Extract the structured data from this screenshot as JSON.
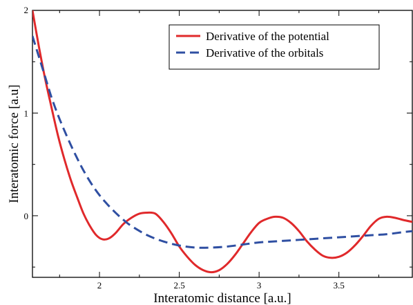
{
  "chart_data": {
    "type": "line",
    "xlabel": "Interatomic distance [a.u.]",
    "ylabel": "Interatomic force [a.u]",
    "xlim": [
      1.58,
      3.96
    ],
    "ylim": [
      -0.6,
      2.0
    ],
    "x_ticks": [
      2,
      2.5,
      3,
      3.5
    ],
    "x_tick_labels": [
      "2",
      "2.5",
      "3",
      "3.5"
    ],
    "y_ticks": [
      0,
      1,
      2
    ],
    "y_tick_labels": [
      "0",
      "1",
      "2"
    ],
    "grid": false,
    "legend_position": "top-right",
    "series": [
      {
        "name": "Derivative of the potential",
        "color": "#e0292b",
        "dash": "solid",
        "x": [
          1.58,
          1.62,
          1.66,
          1.7,
          1.74,
          1.78,
          1.82,
          1.86,
          1.9,
          1.94,
          1.98,
          2.02,
          2.06,
          2.1,
          2.15,
          2.2,
          2.25,
          2.3,
          2.35,
          2.4,
          2.45,
          2.5,
          2.55,
          2.6,
          2.65,
          2.7,
          2.75,
          2.8,
          2.85,
          2.9,
          2.95,
          3.0,
          3.05,
          3.1,
          3.15,
          3.2,
          3.25,
          3.3,
          3.35,
          3.4,
          3.45,
          3.5,
          3.55,
          3.6,
          3.65,
          3.7,
          3.75,
          3.8,
          3.85,
          3.9,
          3.96
        ],
        "y": [
          2.0,
          1.65,
          1.33,
          1.05,
          0.78,
          0.55,
          0.35,
          0.18,
          0.02,
          -0.1,
          -0.19,
          -0.23,
          -0.22,
          -0.17,
          -0.08,
          -0.02,
          0.02,
          0.03,
          0.02,
          -0.06,
          -0.17,
          -0.3,
          -0.4,
          -0.48,
          -0.53,
          -0.55,
          -0.53,
          -0.47,
          -0.38,
          -0.27,
          -0.16,
          -0.07,
          -0.03,
          -0.01,
          -0.02,
          -0.07,
          -0.15,
          -0.25,
          -0.33,
          -0.39,
          -0.41,
          -0.4,
          -0.36,
          -0.29,
          -0.2,
          -0.1,
          -0.03,
          -0.01,
          -0.02,
          -0.04,
          -0.06
        ]
      },
      {
        "name": "Derivative of the orbitals",
        "color": "#2f4fa2",
        "dash": "dashed",
        "x": [
          1.58,
          1.62,
          1.66,
          1.7,
          1.74,
          1.78,
          1.82,
          1.86,
          1.9,
          1.95,
          2.0,
          2.05,
          2.1,
          2.15,
          2.2,
          2.3,
          2.4,
          2.5,
          2.6,
          2.7,
          2.8,
          2.9,
          3.0,
          3.1,
          3.2,
          3.3,
          3.4,
          3.5,
          3.6,
          3.7,
          3.8,
          3.9,
          3.96
        ],
        "y": [
          1.75,
          1.55,
          1.35,
          1.15,
          0.98,
          0.83,
          0.69,
          0.56,
          0.44,
          0.31,
          0.2,
          0.11,
          0.03,
          -0.04,
          -0.1,
          -0.19,
          -0.25,
          -0.29,
          -0.31,
          -0.31,
          -0.3,
          -0.28,
          -0.26,
          -0.25,
          -0.24,
          -0.23,
          -0.22,
          -0.21,
          -0.2,
          -0.19,
          -0.18,
          -0.16,
          -0.15
        ]
      }
    ]
  }
}
